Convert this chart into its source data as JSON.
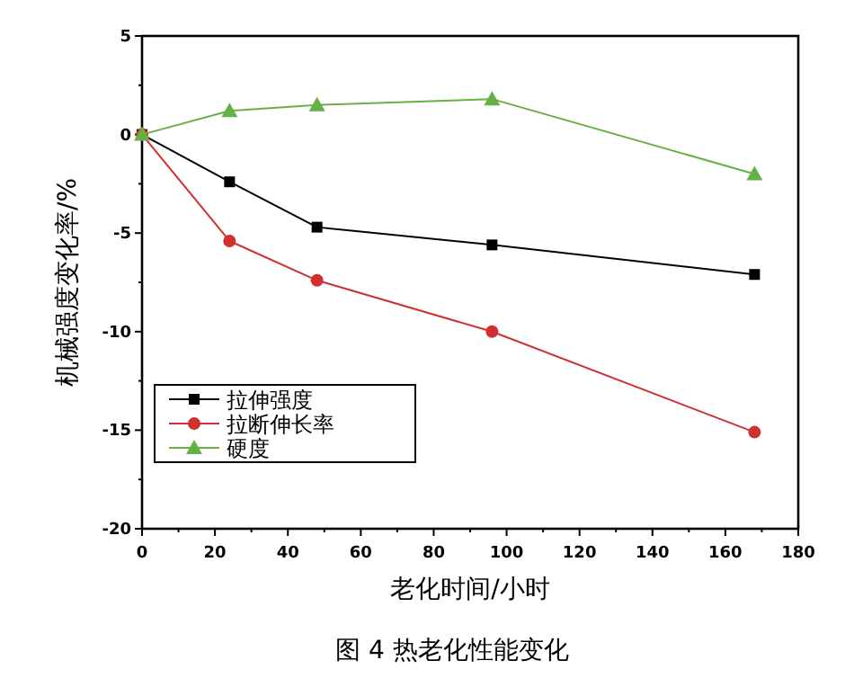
{
  "chart_data": {
    "type": "line",
    "title": "图 4 热老化性能变化",
    "xlabel": "老化时间/小时",
    "ylabel": "机械强度变化率/%",
    "x": [
      0,
      24,
      48,
      96,
      168
    ],
    "series": [
      {
        "name": "拉伸强度",
        "color": "#000000",
        "marker": "square",
        "values": [
          0,
          -2.4,
          -4.7,
          -5.6,
          -7.1
        ]
      },
      {
        "name": "拉断伸长率",
        "color": "#d03030",
        "marker": "circle",
        "values": [
          0,
          -5.4,
          -7.4,
          -10,
          -15.1
        ]
      },
      {
        "name": "硬度",
        "color": "#66b044",
        "marker": "triangle",
        "values": [
          0,
          1.2,
          1.5,
          1.8,
          -2.0
        ]
      }
    ],
    "xlim": [
      0,
      180
    ],
    "xticks": [
      0,
      20,
      40,
      60,
      80,
      100,
      120,
      140,
      160,
      180
    ],
    "ylim": [
      -20,
      5
    ],
    "yticks": [
      -20,
      -15,
      -10,
      -5,
      0,
      5
    ],
    "grid": false,
    "legend": "bottom left",
    "line_style": "solid"
  }
}
